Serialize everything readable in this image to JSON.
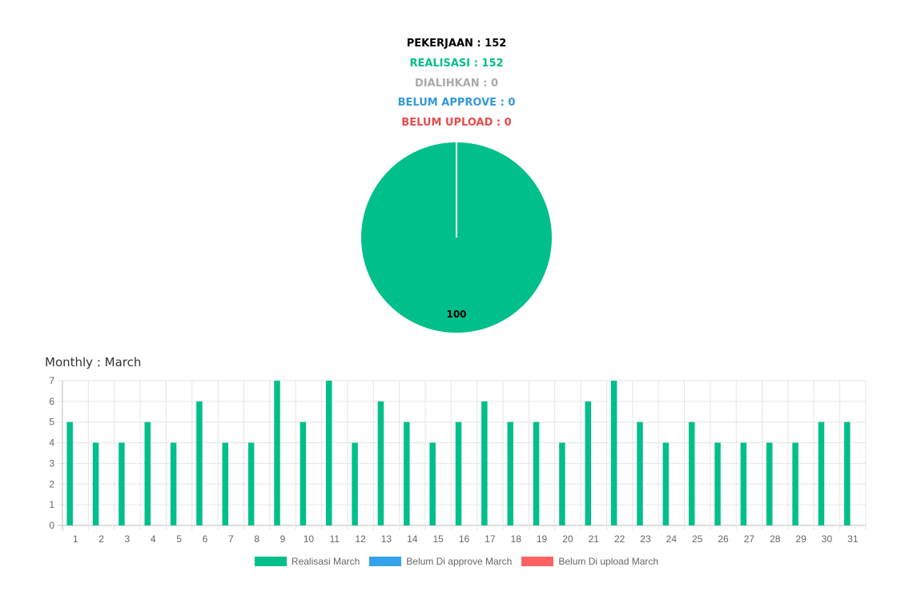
{
  "summary": [
    {
      "key": "pekerjaan",
      "label": "PEKERJAAN",
      "separator": " : ",
      "value": "152",
      "color": "#000000"
    },
    {
      "key": "realisasi",
      "label": "REALISASI",
      "separator": " : ",
      "value": "152",
      "color": "#00bf8a"
    },
    {
      "key": "dialihkan",
      "label": "DIALIHKAN",
      "separator": " : ",
      "value": "0",
      "color": "#aaaaaa"
    },
    {
      "key": "belum-approve",
      "label": "BELUM APPROVE",
      "separator": " : ",
      "value": "0",
      "color": "#3498db"
    },
    {
      "key": "belum-upload",
      "label": "BELUM UPLOAD",
      "separator": " : ",
      "value": "0",
      "color": "#e74c4c"
    }
  ],
  "monthly": {
    "label": "Monthly",
    "separator": " : ",
    "month": "March"
  },
  "chart_data": [
    {
      "type": "pie",
      "values": [
        100
      ],
      "labels": [
        "100"
      ],
      "colors": [
        "#00bf8a"
      ]
    },
    {
      "type": "bar",
      "categories": [
        "1",
        "2",
        "3",
        "4",
        "5",
        "6",
        "7",
        "8",
        "9",
        "10",
        "11",
        "12",
        "13",
        "14",
        "15",
        "16",
        "17",
        "18",
        "19",
        "20",
        "21",
        "22",
        "23",
        "24",
        "25",
        "26",
        "27",
        "28",
        "29",
        "30",
        "31"
      ],
      "series": [
        {
          "name": "Realisasi March",
          "color": "#00bf8a",
          "values": [
            5,
            4,
            4,
            5,
            4,
            6,
            4,
            4,
            7,
            5,
            7,
            4,
            6,
            5,
            4,
            5,
            6,
            5,
            5,
            4,
            6,
            7,
            5,
            4,
            5,
            4,
            4,
            4,
            4,
            5,
            5
          ]
        },
        {
          "name": "Belum Di approve March",
          "color": "#36a2eb",
          "values": [
            0,
            0,
            0,
            0,
            0,
            0,
            0,
            0,
            0,
            0,
            0,
            0,
            0,
            0,
            0,
            0,
            0,
            0,
            0,
            0,
            0,
            0,
            0,
            0,
            0,
            0,
            0,
            0,
            0,
            0,
            0
          ]
        },
        {
          "name": "Belum Di upload March",
          "color": "#ff6262",
          "values": [
            0,
            0,
            0,
            0,
            0,
            0,
            0,
            0,
            0,
            0,
            0,
            0,
            0,
            0,
            0,
            0,
            0,
            0,
            0,
            0,
            0,
            0,
            0,
            0,
            0,
            0,
            0,
            0,
            0,
            0,
            0
          ]
        }
      ],
      "ylim": [
        0,
        7
      ],
      "yticks": [
        "0",
        "1",
        "2",
        "3",
        "4",
        "5",
        "6",
        "7"
      ],
      "grid": true,
      "legend_position": "bottom"
    }
  ]
}
